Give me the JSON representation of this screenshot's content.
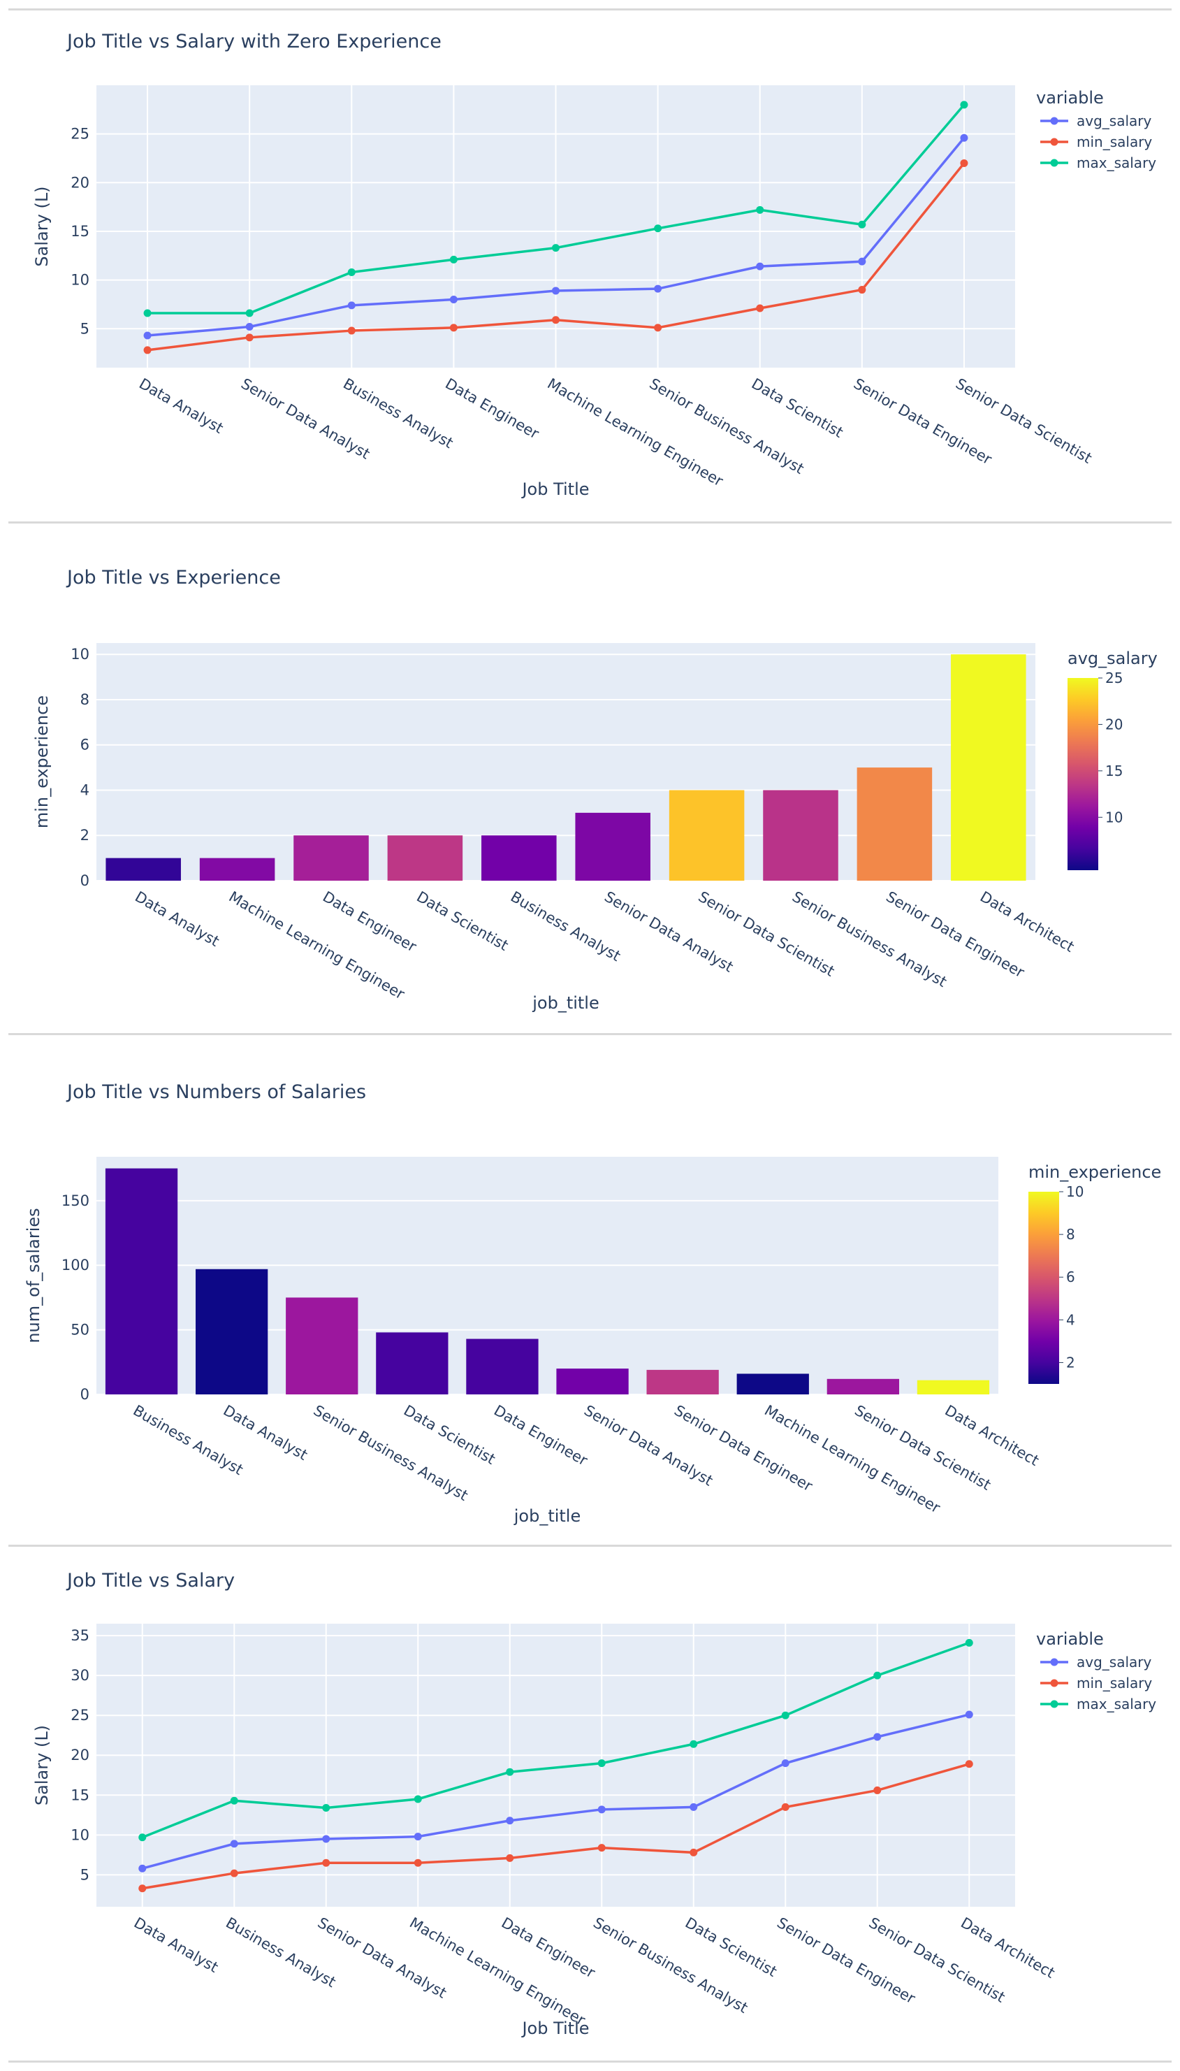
{
  "chart_data": [
    {
      "type": "line",
      "title": "Job Title vs Salary with Zero Experience",
      "xlabel": "Job Title",
      "ylabel": "Salary (L)",
      "ylim": [
        1,
        30
      ],
      "yticks": [
        5,
        10,
        15,
        20,
        25
      ],
      "legend_title": "variable",
      "legend_position": "top-right",
      "categories": [
        "Data Analyst",
        "Senior Data Analyst",
        "Business Analyst",
        "Data Engineer",
        "Machine Learning Engineer",
        "Senior Business Analyst",
        "Data Scientist",
        "Senior Data Engineer",
        "Senior Data Scientist"
      ],
      "series": [
        {
          "name": "avg_salary",
          "color": "#636efa",
          "values": [
            4.3,
            5.2,
            7.4,
            8.0,
            8.9,
            9.1,
            11.4,
            11.9,
            24.6
          ]
        },
        {
          "name": "min_salary",
          "color": "#ef553b",
          "values": [
            2.8,
            4.1,
            4.8,
            5.1,
            5.9,
            5.1,
            7.1,
            9.0,
            22.0
          ]
        },
        {
          "name": "max_salary",
          "color": "#00cc96",
          "values": [
            6.6,
            6.6,
            10.8,
            12.1,
            13.3,
            15.3,
            17.2,
            15.7,
            28.0
          ]
        }
      ]
    },
    {
      "type": "bar",
      "title": "Job Title vs Experience",
      "xlabel": "job_title",
      "ylabel": "min_experience",
      "ylim": [
        0,
        10.5
      ],
      "yticks": [
        0,
        2,
        4,
        6,
        8,
        10
      ],
      "colorbar_title": "avg_salary",
      "colorbar_range": [
        4.3,
        25
      ],
      "colorbar_ticks": [
        10,
        15,
        20,
        25
      ],
      "categories": [
        "Data Analyst",
        "Machine Learning Engineer",
        "Data Engineer",
        "Data Scientist",
        "Business Analyst",
        "Senior Data Analyst",
        "Senior Data Scientist",
        "Senior Business Analyst",
        "Senior Data Engineer",
        "Data Architect"
      ],
      "values": [
        1,
        1,
        2,
        2,
        2,
        3,
        4,
        4,
        5,
        10
      ],
      "color_values": [
        5.8,
        9.8,
        11.8,
        13.5,
        8.9,
        9.5,
        22.3,
        13.2,
        19.0,
        25.1
      ]
    },
    {
      "type": "bar",
      "title": "Job Title vs Numbers of Salaries",
      "xlabel": "job_title",
      "ylabel": "num_of_salaries",
      "ylim": [
        0,
        184
      ],
      "yticks": [
        0,
        50,
        100,
        150
      ],
      "colorbar_title": "min_experience",
      "colorbar_range": [
        1,
        10
      ],
      "colorbar_ticks": [
        2,
        4,
        6,
        8,
        10
      ],
      "categories": [
        "Business Analyst",
        "Data Analyst",
        "Senior Business Analyst",
        "Data Scientist",
        "Data Engineer",
        "Senior Data Analyst",
        "Senior Data Engineer",
        "Machine Learning Engineer",
        "Senior Data Scientist",
        "Data Architect"
      ],
      "values": [
        175,
        97,
        75,
        48,
        43,
        20,
        19,
        16,
        12,
        11
      ],
      "color_values": [
        2,
        1,
        4,
        2,
        2,
        3,
        5,
        1,
        4,
        10
      ]
    },
    {
      "type": "line",
      "title": "Job Title vs Salary",
      "xlabel": "Job Title",
      "ylabel": "Salary (L)",
      "ylim": [
        1,
        36.5
      ],
      "yticks": [
        5,
        10,
        15,
        20,
        25,
        30,
        35
      ],
      "legend_title": "variable",
      "legend_position": "top-right",
      "categories": [
        "Data Analyst",
        "Business Analyst",
        "Senior Data Analyst",
        "Machine Learning Engineer",
        "Data Engineer",
        "Senior Business Analyst",
        "Data Scientist",
        "Senior Data Engineer",
        "Senior Data Scientist",
        "Data Architect"
      ],
      "series": [
        {
          "name": "avg_salary",
          "color": "#636efa",
          "values": [
            5.8,
            8.9,
            9.5,
            9.8,
            11.8,
            13.2,
            13.5,
            19.0,
            22.3,
            25.1
          ]
        },
        {
          "name": "min_salary",
          "color": "#ef553b",
          "values": [
            3.3,
            5.2,
            6.5,
            6.5,
            7.1,
            8.4,
            7.8,
            13.5,
            15.6,
            18.9
          ]
        },
        {
          "name": "max_salary",
          "color": "#00cc96",
          "values": [
            9.7,
            14.3,
            13.4,
            14.5,
            17.9,
            19.0,
            21.4,
            25.0,
            30.0,
            34.1
          ]
        }
      ]
    }
  ]
}
